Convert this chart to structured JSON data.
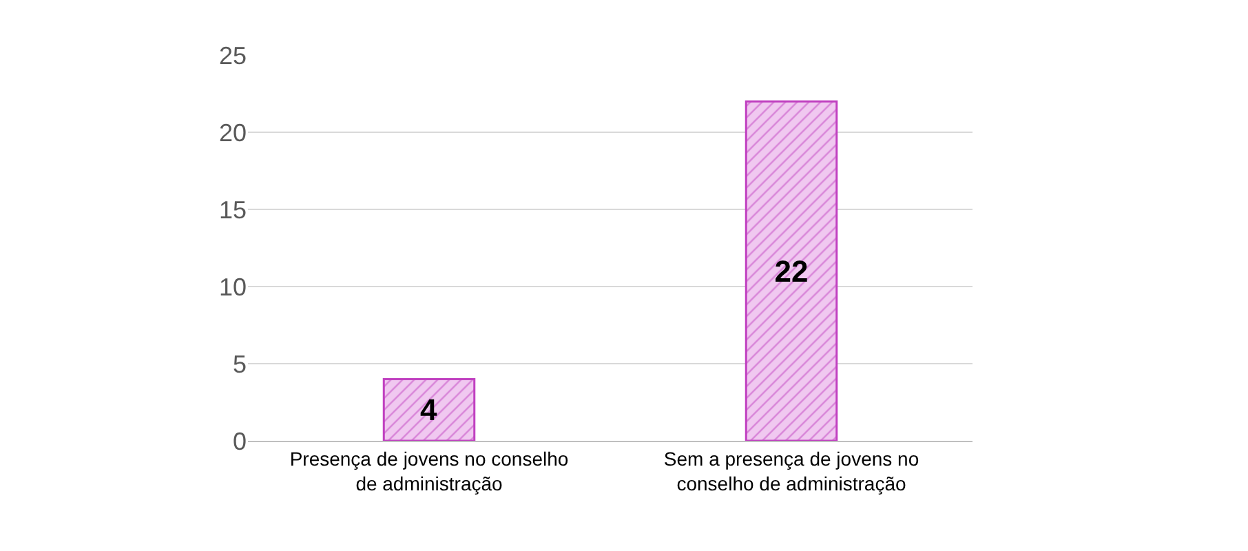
{
  "chart_data": {
    "type": "bar",
    "categories": [
      "Presença de jovens no conselho de administração",
      "Sem a presença de jovens no conselho de administração"
    ],
    "values": [
      4,
      22
    ],
    "color": "#c040c0",
    "ylim": [
      0,
      25
    ],
    "yticks": [
      0,
      5,
      10,
      15,
      20,
      25
    ],
    "grid": "y",
    "data_labels": true
  }
}
